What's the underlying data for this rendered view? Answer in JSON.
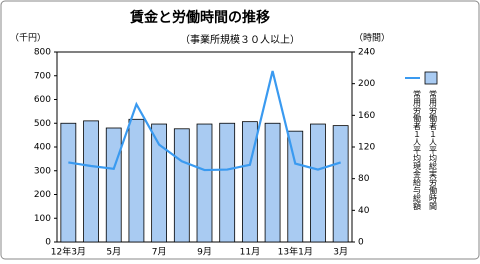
{
  "chart_data": {
    "type": "combo",
    "title": "賃金と労働時間の推移",
    "subtitle": "（事業所規模３０人以上）",
    "y_label": "（千円）",
    "y2_label": "（時間）",
    "categories": [
      "12年3月",
      null,
      "5月",
      null,
      "7月",
      null,
      "9月",
      null,
      "11月",
      null,
      "13年1月",
      null,
      "3月"
    ],
    "series": [
      {
        "name": "常用労働者１人平均総実労働時間",
        "type": "bar",
        "axis": "y2",
        "color": "#a9cbf2",
        "values": [
          150,
          153,
          144,
          155,
          149,
          143,
          149,
          150,
          152,
          150,
          140,
          149,
          147
        ]
      },
      {
        "name": "常用労働者１人平均現金給与総額",
        "type": "line",
        "axis": "y",
        "color": "#3a9af0",
        "values": [
          335,
          320,
          308,
          580,
          410,
          340,
          303,
          305,
          325,
          720,
          330,
          305,
          335
        ]
      }
    ],
    "ylim": [
      0,
      800
    ],
    "yticks": [
      0,
      100,
      200,
      300,
      400,
      500,
      600,
      700,
      800
    ],
    "y2lim": [
      0,
      240
    ],
    "y2ticks": [
      0,
      40,
      80,
      120,
      160,
      200,
      240
    ]
  }
}
